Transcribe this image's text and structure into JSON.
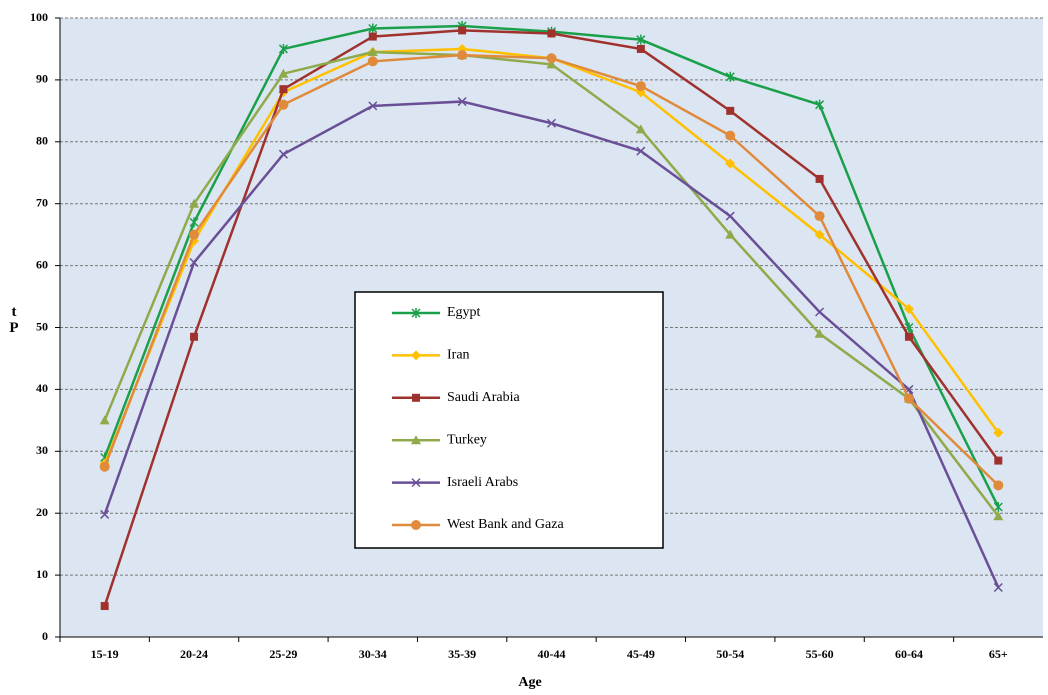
{
  "chart_data": {
    "type": "line",
    "x_label": "Age",
    "y_label": "tP",
    "categories": [
      "15-19",
      "20-24",
      "25-29",
      "30-34",
      "35-39",
      "40-44",
      "45-49",
      "50-54",
      "55-60",
      "60-64",
      "65+"
    ],
    "series": [
      {
        "name": "Egypt",
        "color": "#1aa04a",
        "marker": "star",
        "values": [
          29,
          67,
          95,
          98.3,
          98.7,
          97.8,
          96.5,
          90.5,
          86,
          50,
          21
        ]
      },
      {
        "name": "Iran",
        "color": "#ffc000",
        "marker": "diamond",
        "values": [
          28,
          64,
          88,
          94.5,
          95,
          93.5,
          88,
          76.5,
          65,
          53,
          33
        ]
      },
      {
        "name": "Saudi Arabia",
        "color": "#a0322d",
        "marker": "square",
        "values": [
          5,
          48.5,
          88.5,
          97,
          98,
          97.5,
          95,
          85,
          74,
          48.5,
          28.5
        ]
      },
      {
        "name": "Turkey",
        "color": "#8faa4a",
        "marker": "triangle",
        "values": [
          35,
          70,
          91,
          94.5,
          94,
          92.5,
          82,
          65,
          49,
          38.5,
          19.5
        ]
      },
      {
        "name": "Israeli Arabs",
        "color": "#6a4f96",
        "marker": "x",
        "values": [
          19.8,
          60.5,
          78,
          85.8,
          86.5,
          83,
          78.5,
          68,
          52.5,
          40,
          8
        ]
      },
      {
        "name": "West Bank and Gaza",
        "color": "#e08a3c",
        "marker": "circle",
        "values": [
          27.5,
          65,
          86,
          93,
          94,
          93.5,
          89,
          81,
          68,
          38.5,
          24.5
        ]
      }
    ],
    "ylim": [
      0,
      100
    ],
    "yticks": [
      0,
      10,
      20,
      30,
      40,
      50,
      60,
      70,
      80,
      90,
      100
    ],
    "grid": true
  }
}
